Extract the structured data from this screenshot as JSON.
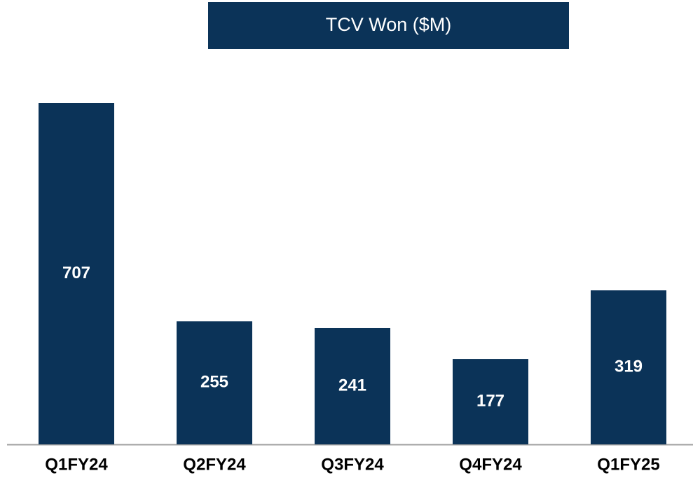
{
  "chart_data": {
    "type": "bar",
    "title": "TCV Won ($M)",
    "categories": [
      "Q1FY24",
      "Q2FY24",
      "Q3FY24",
      "Q4FY24",
      "Q1FY25"
    ],
    "values": [
      707,
      255,
      241,
      177,
      319
    ],
    "color": "#0b3358"
  }
}
